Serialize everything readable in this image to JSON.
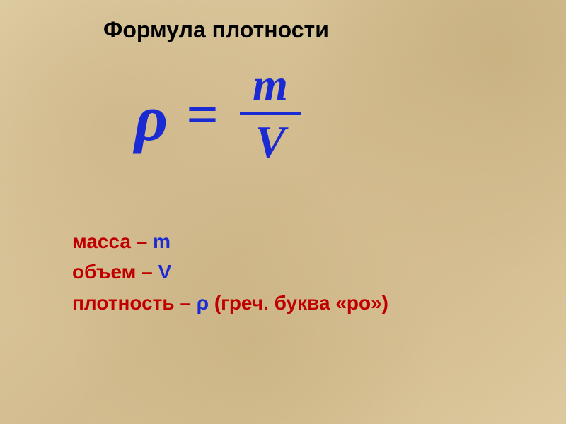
{
  "title": "Формула плотности",
  "formula": {
    "lhs_symbol": "ρ",
    "equals": "=",
    "numerator": "m",
    "denominator": "V",
    "color": "#1b2bd4",
    "fraction_bar_color": "#1b2bd4"
  },
  "legend": {
    "mass": {
      "label": "масса",
      "dash": " – ",
      "symbol": "m",
      "note": "",
      "label_color": "#c00000",
      "symbol_color": "#1b2bd4",
      "note_color": "#c00000"
    },
    "volume": {
      "label": "объем",
      "dash": " – ",
      "symbol": "V",
      "note": "",
      "label_color": "#c00000",
      "symbol_color": "#1b2bd4",
      "note_color": "#c00000"
    },
    "density": {
      "label": "плотность",
      "dash": " – ",
      "symbol": "ρ",
      "note": " (греч. буква «ро»)",
      "label_color": "#c00000",
      "symbol_color": "#1b2bd4",
      "note_color": "#c00000"
    }
  },
  "colors": {
    "title": "#000000",
    "background_base": "#d8c59a"
  }
}
